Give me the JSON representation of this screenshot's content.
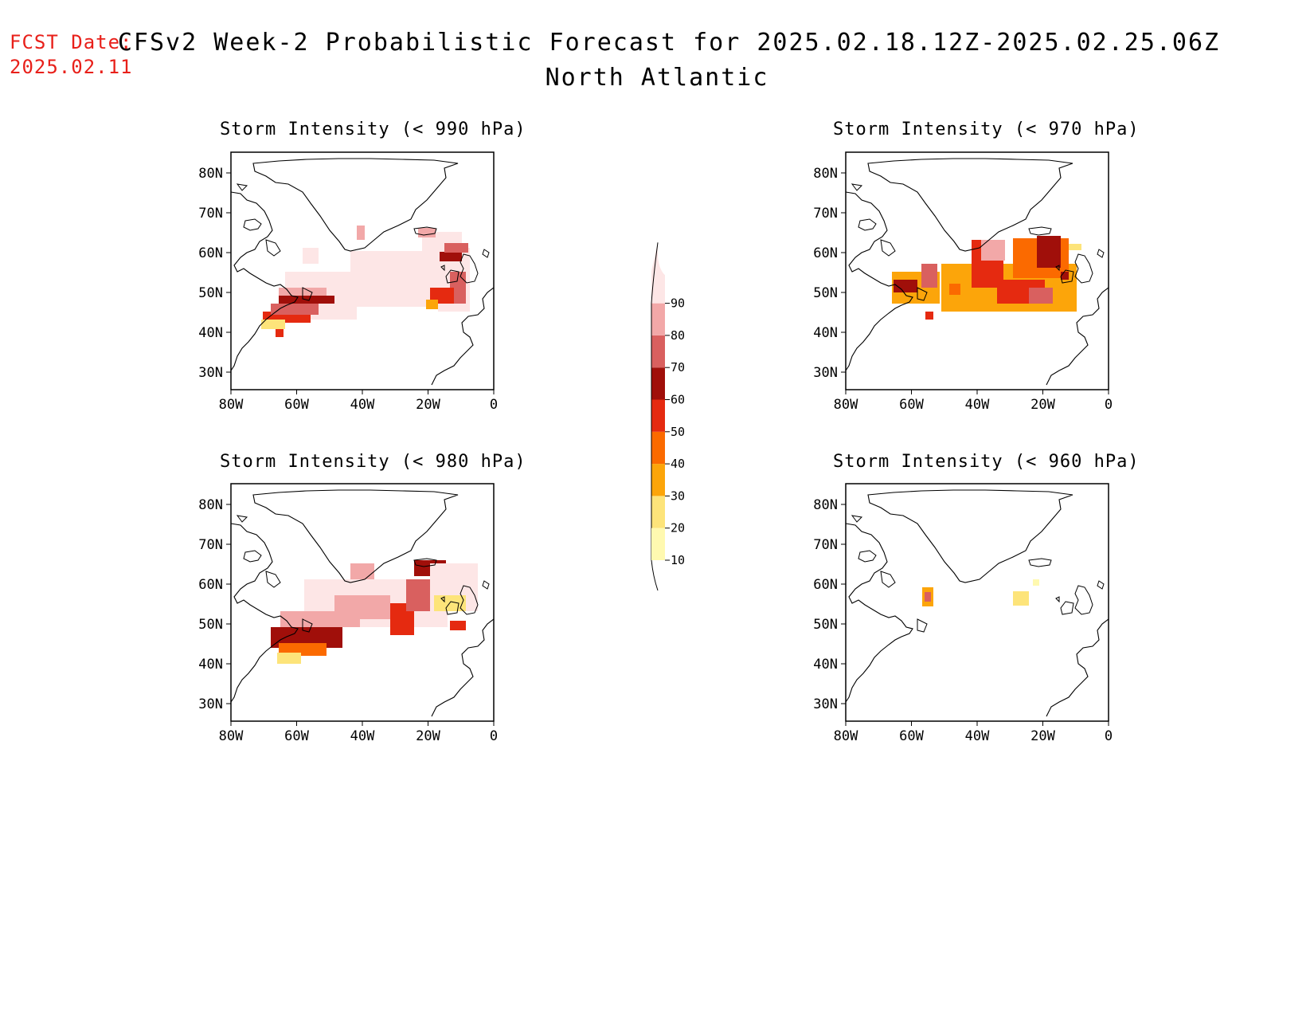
{
  "forecast_date": {
    "label": "FCST Date:",
    "value": "2025.02.11"
  },
  "title": {
    "line1": "CFSv2 Week-2 Probabilistic Forecast for 2025.02.18.12Z-2025.02.25.06Z",
    "line2": "North Atlantic"
  },
  "panels": [
    {
      "id": "p990",
      "title": "Storm Intensity (< 990 hPa)"
    },
    {
      "id": "p970",
      "title": "Storm Intensity (< 970 hPa)"
    },
    {
      "id": "p980",
      "title": "Storm Intensity (< 980 hPa)"
    },
    {
      "id": "p960",
      "title": "Storm Intensity (< 960 hPa)"
    }
  ],
  "axes": {
    "lon_labels": [
      "80W",
      "60W",
      "40W",
      "20W",
      "0"
    ],
    "lat_labels": [
      "80N",
      "70N",
      "60N",
      "50N",
      "40N",
      "30N"
    ]
  },
  "colorbar": {
    "levels": [
      "10",
      "20",
      "30",
      "40",
      "50",
      "60",
      "70",
      "80",
      "90"
    ],
    "colors": [
      "#fff9b0",
      "#fde47a",
      "#fca50a",
      "#fb6a00",
      "#e52a10",
      "#a00f0a",
      "#d9605f",
      "#f2a8a8",
      "#fde6e6"
    ]
  }
}
